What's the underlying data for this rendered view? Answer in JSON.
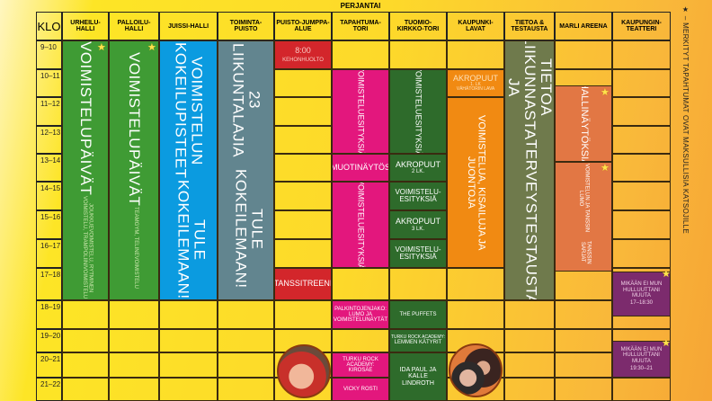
{
  "day": "PERJANTAI",
  "klo_label": "KLO",
  "venues": [
    "URHEILU-HALLI",
    "PALLOILU-HALLI",
    "JUISSI-HALLI",
    "TOIMINTA-PUISTO",
    "PUISTO-JUMPPA-ALUE",
    "TAPAHTUMA-TORI",
    "TUOMIO-KIRKKO-TORI",
    "KAUPUNKI-LAVAT",
    "TIETOA & TESTAUSTA",
    "MARLI AREENA",
    "KAUPUNGIN-TEATTERI"
  ],
  "hours": [
    "9–10",
    "10–11",
    "11–12",
    "12–13",
    "13–14",
    "14–15",
    "15–16",
    "16–17",
    "17–18",
    "18–19",
    "19–20",
    "20–21",
    "21–22"
  ],
  "events": {
    "urheilu": {
      "title": "VOIMISTELUPÄIVÄT",
      "sub": "JOUKKUEVOIMISTELU, RYTMINEN VOIMISTELU, TRAMPOLIINIVOIMISTELU"
    },
    "palloilu": {
      "title": "VOIMISTELUPÄIVÄT",
      "sub": "TEAMGYM, TELINEVOIMISTELU"
    },
    "juissi": {
      "title": "VOIMISTELUN KOKEILUPISTEET",
      "sub": "TULE KOKEILEMAAN!"
    },
    "toiminta": {
      "title": "23 LIIKUNTALAJIA",
      "sub": "TULE KOKEILEMAAN!"
    },
    "puisto1": {
      "time": "8:00",
      "title": "KEHONHUOLTO"
    },
    "puisto2": "TANSSITREENI",
    "tori1": "VOIMISTELUESITYKSIÄ",
    "tori2": "MUOTINÄYTÖS",
    "tori3": "VOIMISTELUESITYKSIÄ",
    "tori4": "PALKINTOJENJAKO: LUMO JA VOIMISTELUNÄYTÄT",
    "tori5": "TURKU ROCK ACADEMY: KIROSÄE",
    "tori6": "VICKY ROSTI",
    "tuomio1": "VOIMISTELUESITYKSIÄ",
    "tuomio2": {
      "title": "AKROPUUT",
      "sub": "2 LK."
    },
    "tuomio3": "VOIMISTELU-ESITYKSIÄ",
    "tuomio4": {
      "title": "AKROPUUT",
      "sub": "3 LK."
    },
    "tuomio5": "VOIMISTELU-ESITYKSIÄ",
    "tuomio6": "THE PUFFETS",
    "tuomio7": {
      "title": "TURKU ROCK ACADEMY:",
      "sub": "LEMMEN KÄTYRIT"
    },
    "tuomio8": "IDA PAUL JA KALLE LINDROTH",
    "lavat1": {
      "title": "AKROPUUT",
      "sub": "1. LK",
      "place": "VÄHÄTORIN LAVA"
    },
    "lavat2": "VOIMISTELUA, KISAILUJA JA JUONTOJA",
    "tietoa": {
      "title": "TIETOA LIIKUNNASTA JA",
      "sub": "TERVEYSTESTAUSTA"
    },
    "marli1": "HALLINÄYTÖKSIÄ",
    "marli2": {
      "title": "VOIMISTELUN JA TANSSIN LUMO",
      "sub": "TANSSIN SARJAT"
    },
    "teatteri1": {
      "title": "MIKÄÄN EI MUN HULLUUTTANI MUUTA",
      "time": "17–18:30"
    },
    "teatteri2": {
      "title": "MIKÄÄN EI MUN HULLUUTTANI MUUTA",
      "time": "19:30–21"
    }
  },
  "legend": "★ – MERKITYT TAPAHTUMAT OVAT MAKSULLISIA KATSOJILLE",
  "colors": {
    "green": "#3f9b34",
    "blue": "#0b9be0",
    "gray": "#62858f",
    "red": "#d3262b",
    "magenta": "#e3177d",
    "darkgreen": "#2e6b2b",
    "orange": "#f18a12",
    "olive": "#6f7a4c",
    "coral": "#e27744",
    "purple": "#7c2b6d"
  }
}
